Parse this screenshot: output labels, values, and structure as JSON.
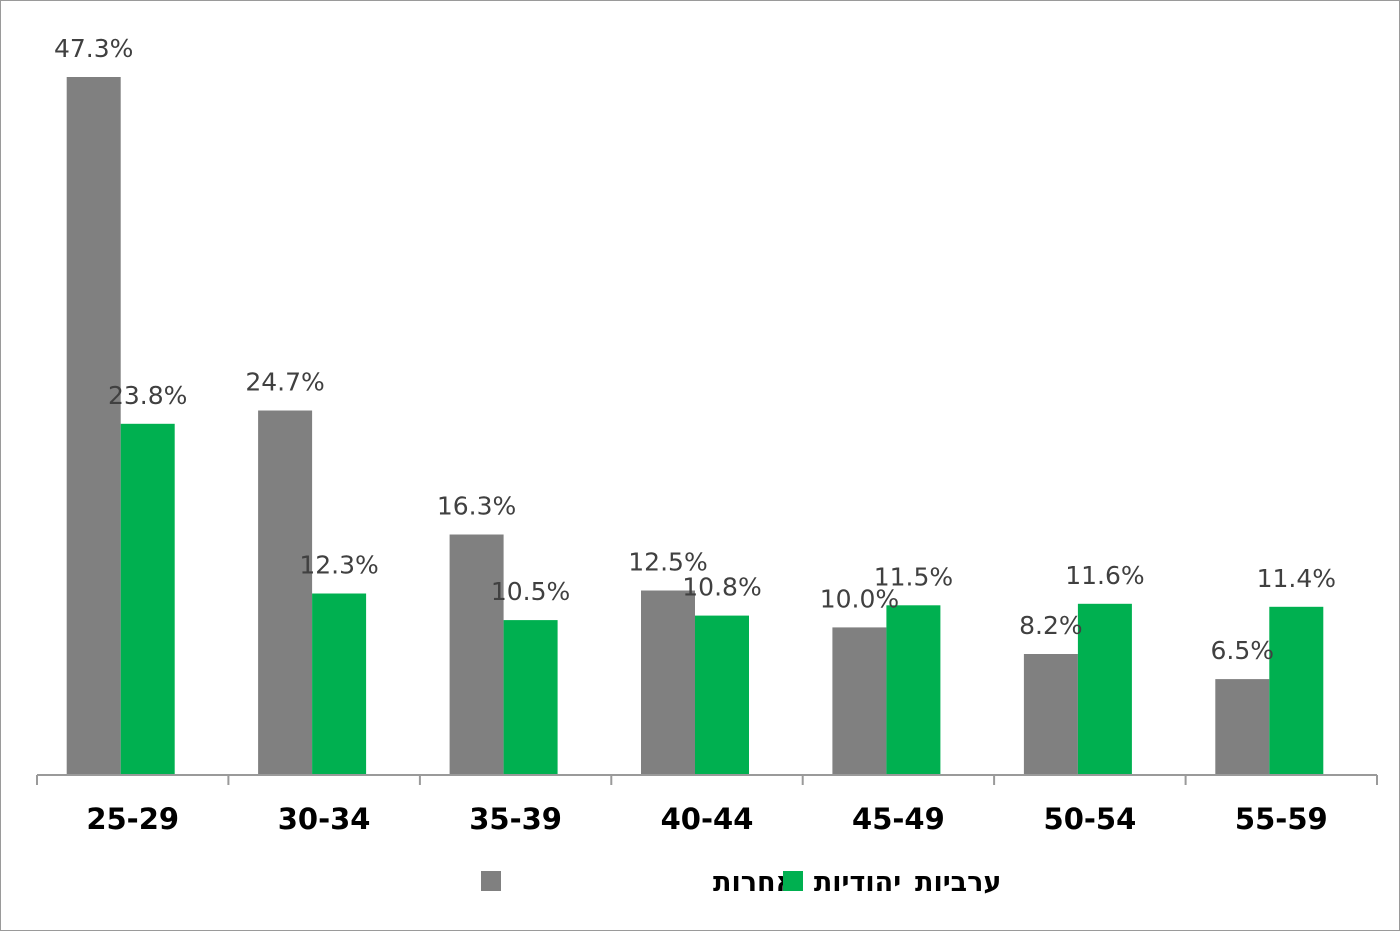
{
  "chart_data": {
    "type": "bar",
    "title": "",
    "xlabel": "",
    "ylabel": "",
    "categories": [
      "25-29",
      "30-34",
      "35-39",
      "40-44",
      "45-49",
      "50-54",
      "55-59"
    ],
    "series": [
      {
        "name": "יהודיות ואחרות",
        "color": "#808080",
        "values": [
          47.3,
          24.7,
          16.3,
          12.5,
          10.0,
          8.2,
          6.5
        ],
        "labels": [
          "47.3%",
          "24.7%",
          "16.3%",
          "12.5%",
          "10.0%",
          "8.2%",
          "6.5%"
        ]
      },
      {
        "name": "ערביות",
        "color": "#00b050",
        "values": [
          23.8,
          12.3,
          10.5,
          10.8,
          11.5,
          11.6,
          11.4
        ],
        "labels": [
          "23.8%",
          "12.3%",
          "10.5%",
          "10.8%",
          "11.5%",
          "11.6%",
          "11.4%"
        ]
      }
    ],
    "ylim": [
      0,
      47.3
    ],
    "grid": false,
    "y_axis_visible": false,
    "legend_position": "bottom"
  }
}
